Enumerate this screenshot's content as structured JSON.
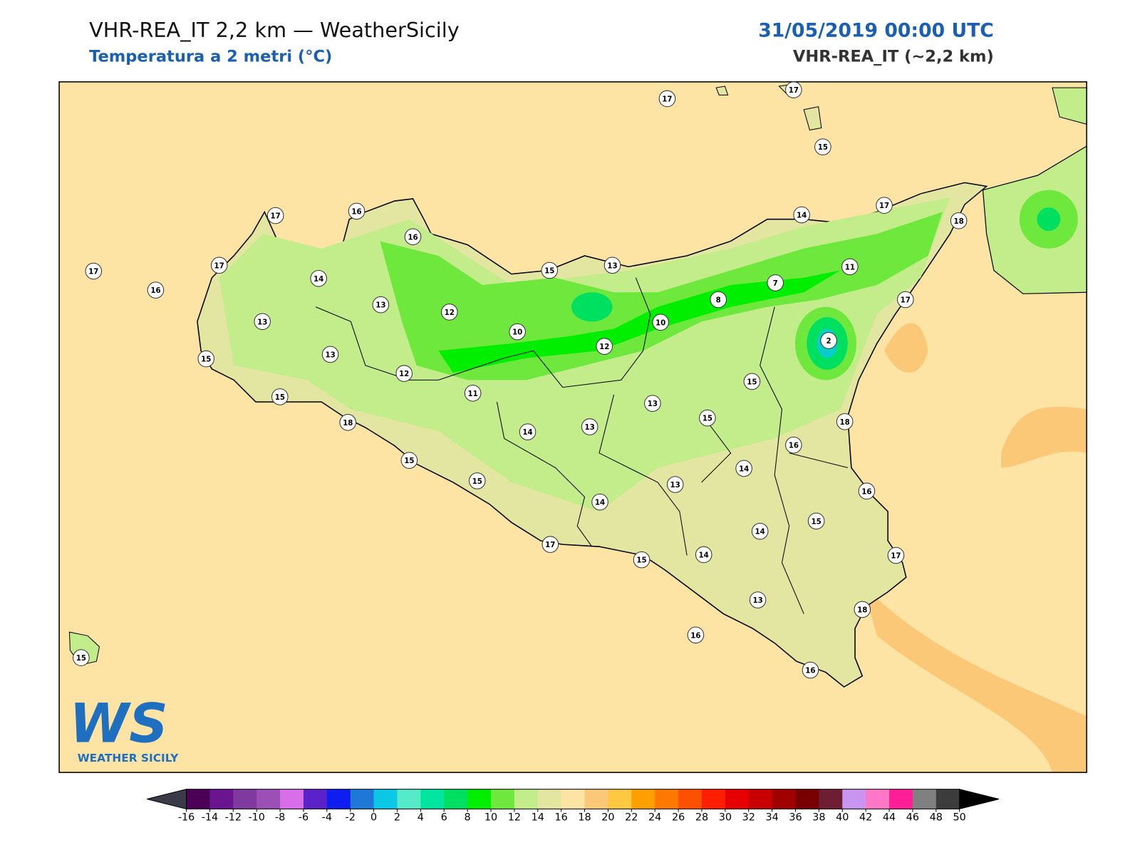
{
  "header": {
    "title": "VHR-REA_IT 2,2 km — WeatherSicily",
    "subtitle": "Temperatura a 2 metri (°C)",
    "date": "31/05/2019 00:00 UTC",
    "model": "VHR-REA_IT (~2,2 km)"
  },
  "logo": {
    "text": "WS",
    "caption": "WEATHER SICILY"
  },
  "stations": [
    17,
    17,
    15,
    17,
    16,
    16,
    17,
    17,
    16,
    14,
    14,
    17,
    18,
    15,
    13,
    11,
    7,
    8,
    17,
    13,
    13,
    12,
    10,
    10,
    12,
    2,
    15,
    13,
    12,
    15,
    11,
    15,
    13,
    15,
    18,
    13,
    14,
    18,
    16,
    15,
    14,
    15,
    13,
    16,
    14,
    15,
    14,
    17,
    15,
    14,
    17,
    13,
    18,
    16,
    15,
    16
  ],
  "colorbar": {
    "ticks": [
      -16,
      -14,
      -12,
      -10,
      -8,
      -6,
      -4,
      -2,
      0,
      2,
      4,
      6,
      8,
      10,
      12,
      14,
      16,
      18,
      20,
      22,
      24,
      26,
      28,
      30,
      32,
      34,
      36,
      38,
      40,
      42,
      44,
      46,
      48,
      50
    ],
    "colors": [
      "#4b0055",
      "#6a1490",
      "#7f3aa0",
      "#9d4fb8",
      "#d86fe8",
      "#5a22c8",
      "#0f1ef0",
      "#1e78d8",
      "#0ac8e6",
      "#55ebc8",
      "#00e6a0",
      "#00e060",
      "#00ee00",
      "#6ee83c",
      "#c3ec8a",
      "#e3e6a0",
      "#fee4a4",
      "#fbc878",
      "#ffc840",
      "#ffa000",
      "#ff7800",
      "#ff5000",
      "#ff1e00",
      "#e60000",
      "#c80000",
      "#a00000",
      "#780000",
      "#6e1e32",
      "#c896f0",
      "#ff78c8",
      "#ff1e96",
      "#808080",
      "#3c3c3c"
    ],
    "under_color": "#3a3a48",
    "over_color": "#000000"
  }
}
